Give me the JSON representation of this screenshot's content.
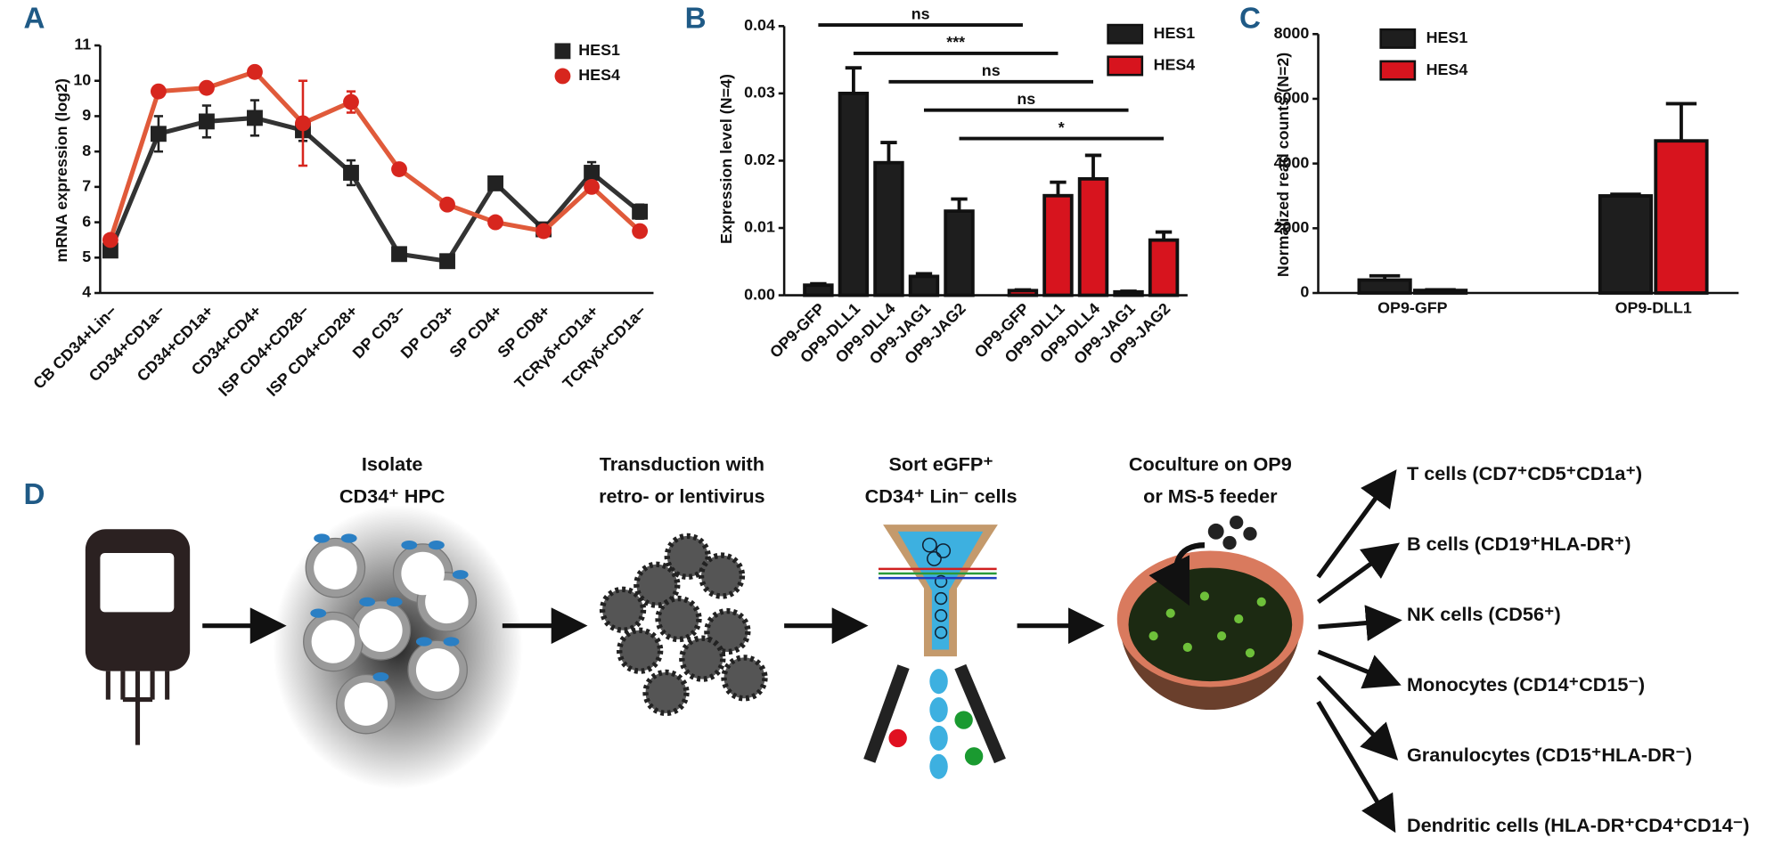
{
  "chart_data": [
    {
      "type": "line",
      "panel": "A",
      "ylabel": "mRNA expression (log2)",
      "categories": [
        "CB CD34+Lin−",
        "CD34+CD1a−",
        "CD34+CD1a+",
        "CD34+CD4+",
        "ISP CD4+CD28−",
        "ISP CD4+CD28+",
        "DP CD3−",
        "DP CD3+",
        "SP CD4+",
        "SP CD8+",
        "TCRγδ+CD1a+",
        "TCRγδ+CD1a−"
      ],
      "series": [
        {
          "name": "HES1",
          "color": "#222222",
          "marker": "square",
          "values": [
            5.2,
            8.5,
            8.85,
            8.95,
            8.6,
            7.4,
            5.1,
            4.9,
            7.1,
            5.8,
            7.4,
            6.3
          ],
          "errors": [
            0.1,
            0.5,
            0.45,
            0.5,
            0.3,
            0.35,
            0.1,
            0.1,
            0.15,
            0.1,
            0.3,
            0.2
          ]
        },
        {
          "name": "HES4",
          "color": "#d7261e",
          "marker": "circle",
          "values": [
            5.5,
            9.7,
            9.8,
            10.25,
            8.8,
            9.4,
            7.5,
            6.5,
            6.0,
            5.75,
            7.0,
            5.75
          ],
          "errors": [
            0.1,
            0.1,
            0.1,
            0.1,
            1.2,
            0.3,
            0.1,
            0.1,
            0.1,
            0.1,
            0.1,
            0.1
          ]
        }
      ],
      "ylim": [
        4,
        11
      ],
      "yticks": [
        4,
        5,
        6,
        7,
        8,
        9,
        10,
        11
      ],
      "legend": "top-right"
    },
    {
      "type": "bar",
      "panel": "B",
      "ylabel": "Expression level (N=4)",
      "categories": [
        "OP9-GFP",
        "OP9-DLL1",
        "OP9-DLL4",
        "OP9-JAG1",
        "OP9-JAG2",
        "OP9-GFP",
        "OP9-DLL1",
        "OP9-DLL4",
        "OP9-JAG1",
        "OP9-JAG2"
      ],
      "series": [
        {
          "name": "HES1",
          "color": "#1e1e1e",
          "values": [
            0.0015,
            0.03,
            0.0197,
            0.0028,
            0.0125,
            null,
            null,
            null,
            null,
            null
          ],
          "errors": [
            0.0002,
            0.0038,
            0.003,
            0.0004,
            0.0018,
            null,
            null,
            null,
            null,
            null
          ]
        },
        {
          "name": "HES4",
          "color": "#d7141e",
          "values": [
            null,
            null,
            null,
            null,
            null,
            0.0007,
            0.0148,
            0.0173,
            0.0005,
            0.0082
          ],
          "errors": [
            null,
            null,
            null,
            null,
            null,
            0.0001,
            0.002,
            0.0035,
            0.0001,
            0.0012
          ]
        }
      ],
      "annotations": [
        "ns",
        "***",
        "ns",
        "ns",
        "*"
      ],
      "ylim": [
        0,
        0.04
      ],
      "yticks": [
        {
          "value": 0,
          "label": "0.00"
        },
        0.01,
        0.02,
        0.03,
        0.04
      ],
      "legend": "top-right"
    },
    {
      "type": "bar",
      "panel": "C",
      "ylabel": "Normalized read counts (N=2)",
      "categories": [
        "OP9-GFP",
        "OP9-DLL1"
      ],
      "series": [
        {
          "name": "HES1",
          "color": "#1e1e1e",
          "values": [
            400,
            3000
          ],
          "errors": [
            130,
            50
          ]
        },
        {
          "name": "HES4",
          "color": "#d7141e",
          "values": [
            80,
            4700
          ],
          "errors": [
            20,
            1150
          ]
        }
      ],
      "ylim": [
        0,
        8000
      ],
      "yticks": [
        0,
        2000,
        4000,
        6000,
        8000
      ],
      "legend": "top-left"
    }
  ],
  "diagram": {
    "panel": "D",
    "steps": [
      [
        "Isolate",
        "CD34⁺ HPC"
      ],
      [
        "Transduction with",
        "retro- or lentivirus"
      ],
      [
        "Sort eGFP⁺",
        "CD34⁺ Lin⁻ cells"
      ],
      [
        "Coculture on OP9",
        "or MS-5 feeder"
      ]
    ],
    "outcomes": [
      "T cells (CD7⁺CD5⁺CD1a⁺)",
      "B cells (CD19⁺HLA-DR⁺)",
      "NK cells (CD56⁺)",
      "Monocytes (CD14⁺CD15⁻)",
      "Granulocytes (CD15⁺HLA-DR⁻)",
      "Dendritic cells (HLA-DR⁺CD4⁺CD14⁻)"
    ]
  }
}
